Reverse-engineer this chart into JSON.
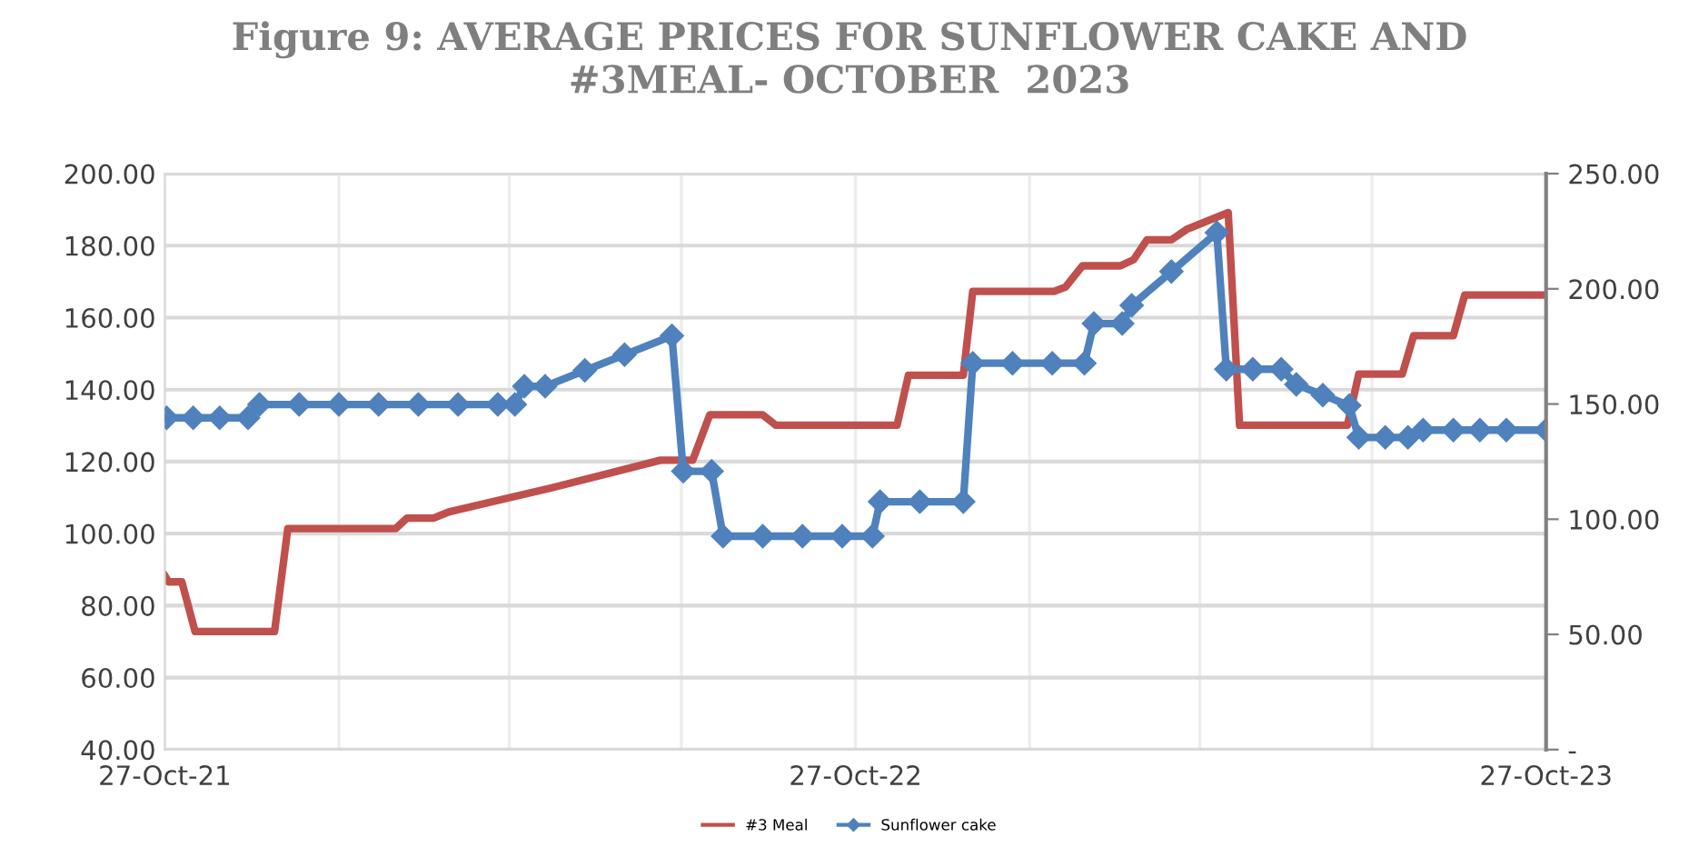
{
  "chart_data": {
    "type": "line",
    "title": "Figure 9: AVERAGE PRICES FOR SUNFLOWER CAKE AND\n#3MEAL- OCTOBER  2023",
    "series": [
      {
        "name": "#3 Meal",
        "color": "#c0504d",
        "marker": "none",
        "x": [
          "2021-10-27",
          "2021-10-29",
          "2021-11-05",
          "2021-11-12",
          "2021-12-24",
          "2021-12-31",
          "2022-02-26",
          "2022-03-04",
          "2022-03-18",
          "2022-03-26",
          "2022-05-20",
          "2022-07-16",
          "2022-08-02",
          "2022-08-11",
          "2022-09-08",
          "2022-09-15",
          "2022-11-18",
          "2022-11-24",
          "2022-12-23",
          "2022-12-28",
          "2023-02-09",
          "2023-02-15",
          "2023-02-24",
          "2023-03-16",
          "2023-03-23",
          "2023-03-30",
          "2023-04-12",
          "2023-04-20",
          "2023-05-12",
          "2023-05-18",
          "2023-07-14",
          "2023-07-20",
          "2023-08-12",
          "2023-08-18",
          "2023-09-08",
          "2023-09-14",
          "2023-10-27"
        ],
        "values": [
          88.3,
          86.6,
          86.6,
          72.8,
          72.8,
          101.4,
          101.4,
          104.3,
          104.3,
          106.0,
          112.8,
          120.4,
          120.4,
          133.0,
          133.0,
          130.1,
          130.1,
          144.0,
          144.0,
          167.3,
          167.3,
          168.5,
          174.4,
          174.4,
          176.1,
          181.6,
          181.6,
          184.5,
          189.2,
          130.1,
          130.1,
          144.3,
          144.3,
          155.0,
          155.0,
          166.3,
          166.3
        ]
      },
      {
        "name": "Sunflower cake",
        "color": "#4f81bd",
        "marker": "diamond",
        "axis": "y2",
        "x": [
          "2021-10-28",
          "2021-11-11",
          "2021-11-25",
          "2021-12-10",
          "2021-12-16",
          "2022-01-06",
          "2022-01-27",
          "2022-02-17",
          "2022-03-10",
          "2022-03-31",
          "2022-04-21",
          "2022-04-30",
          "2022-05-05",
          "2022-05-16",
          "2022-06-06",
          "2022-06-27",
          "2022-07-22",
          "2022-07-28",
          "2022-08-12",
          "2022-08-18",
          "2022-09-08",
          "2022-09-29",
          "2022-10-20",
          "2022-11-05",
          "2022-11-09",
          "2022-11-30",
          "2022-12-23",
          "2022-12-28",
          "2023-01-18",
          "2023-02-08",
          "2023-02-25",
          "2023-03-02",
          "2023-03-17",
          "2023-03-22",
          "2023-04-12",
          "2023-05-06",
          "2023-05-11",
          "2023-05-25",
          "2023-06-09",
          "2023-06-17",
          "2023-07-01",
          "2023-07-15",
          "2023-07-20",
          "2023-08-03",
          "2023-08-15",
          "2023-08-23",
          "2023-09-08",
          "2023-09-22",
          "2023-10-06",
          "2023-10-27"
        ],
        "values": [
          144.0,
          144.0,
          144.0,
          144.0,
          149.8,
          149.8,
          149.8,
          149.8,
          149.8,
          149.8,
          149.8,
          149.8,
          157.7,
          157.7,
          164.6,
          171.4,
          179.6,
          120.8,
          120.8,
          92.6,
          92.6,
          92.6,
          92.6,
          92.6,
          107.6,
          107.6,
          107.6,
          167.7,
          167.7,
          167.7,
          167.7,
          184.9,
          184.9,
          192.8,
          207.5,
          224.4,
          165.1,
          165.1,
          165.1,
          158.5,
          153.9,
          149.3,
          135.5,
          135.5,
          135.5,
          138.7,
          138.7,
          138.7,
          138.7,
          138.7
        ]
      }
    ],
    "xlim": [
      "2021-10-27",
      "2023-10-27"
    ],
    "xticks": [
      {
        "value": "2021-10-27",
        "label": "27-Oct-21"
      },
      {
        "value": "2022-01-27",
        "label": null
      },
      {
        "value": "2022-04-27",
        "label": null
      },
      {
        "value": "2022-07-27",
        "label": null
      },
      {
        "value": "2022-10-27",
        "label": "27-Oct-22"
      },
      {
        "value": "2023-01-27",
        "label": null
      },
      {
        "value": "2023-04-27",
        "label": null
      },
      {
        "value": "2023-07-27",
        "label": null
      },
      {
        "value": "2023-10-27",
        "label": "27-Oct-23"
      }
    ],
    "ylim": [
      40,
      200
    ],
    "yticks": [
      {
        "value": 40,
        "label": "40.00"
      },
      {
        "value": 60,
        "label": "60.00"
      },
      {
        "value": 80,
        "label": "80.00"
      },
      {
        "value": 100,
        "label": "100.00"
      },
      {
        "value": 120,
        "label": "120.00"
      },
      {
        "value": 140,
        "label": "140.00"
      },
      {
        "value": 160,
        "label": "160.00"
      },
      {
        "value": 180,
        "label": "180.00"
      },
      {
        "value": 200,
        "label": "200.00"
      }
    ],
    "y2lim": [
      0,
      250
    ],
    "y2ticks": [
      {
        "value": 0,
        "label": "-"
      },
      {
        "value": 50,
        "label": "50.00"
      },
      {
        "value": 100,
        "label": "100.00"
      },
      {
        "value": 150,
        "label": "150.00"
      },
      {
        "value": 200,
        "label": "200.00"
      },
      {
        "value": 250,
        "label": "250.00"
      }
    ],
    "grid": true,
    "legend": "bottom",
    "line_style": "solid"
  }
}
